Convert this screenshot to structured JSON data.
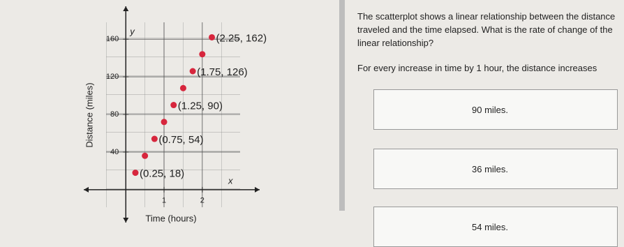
{
  "chart_data": {
    "type": "scatter",
    "x_label": "Time (hours)",
    "y_label": "Distance (miles)",
    "x_axis_letter": "x",
    "y_axis_letter": "y",
    "x": [
      0.25,
      0.5,
      0.75,
      1,
      1.25,
      1.5,
      1.75,
      2,
      2.25
    ],
    "values": [
      18,
      36,
      54,
      72,
      90,
      108,
      126,
      144,
      162
    ],
    "point_labels": [
      "(0.25, 18)",
      null,
      "(0.75, 54)",
      null,
      "(1.25, 90)",
      null,
      "(1.75, 126)",
      null,
      "(2.25, 162)"
    ],
    "color": "#d7263d",
    "xlim": [
      -1.1,
      3.5
    ],
    "ylim": [
      -35,
      195
    ],
    "xticks": [
      1,
      2
    ],
    "yticks": [
      40,
      80,
      120,
      160
    ],
    "grid": true
  },
  "question": "The scatterplot shows a linear relationship between the distance traveled and the time elapsed. What is the rate of change of the linear relationship?",
  "statement": "For every increase in time by 1 hour, the distance increases",
  "options": [
    "90 miles.",
    "36 miles.",
    "54 miles."
  ]
}
